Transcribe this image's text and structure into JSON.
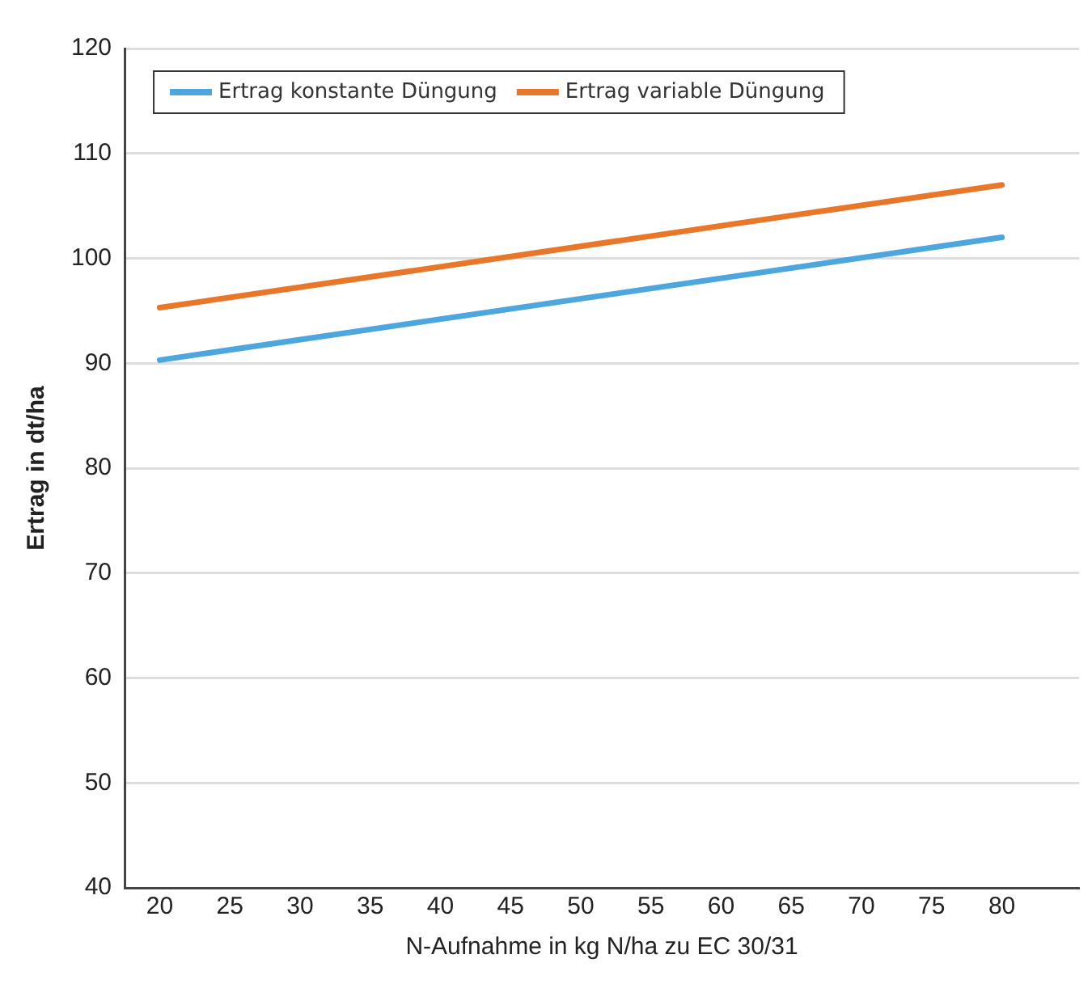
{
  "chart_data": {
    "type": "line",
    "xlabel": "N-Aufnahme in kg N/ha zu EC 30/31",
    "ylabel": "Ertrag in dt/ha",
    "x": [
      20,
      80
    ],
    "series": [
      {
        "name": "Ertrag konstante Düngung",
        "color": "#4ea6de",
        "values": [
          90.3,
          102
        ]
      },
      {
        "name": "Ertrag variable Düngung",
        "color": "#e8772a",
        "values": [
          95.3,
          107
        ]
      }
    ],
    "xlim": [
      17.5,
      85.5
    ],
    "xticks": [
      20,
      25,
      30,
      35,
      40,
      45,
      50,
      55,
      60,
      65,
      70,
      75,
      80
    ],
    "ylim": [
      40,
      120
    ],
    "yticks": [
      40,
      50,
      60,
      70,
      80,
      90,
      100,
      110,
      120
    ],
    "grid": "y",
    "legend": "top left",
    "marker": "none",
    "line_style": "solid"
  }
}
